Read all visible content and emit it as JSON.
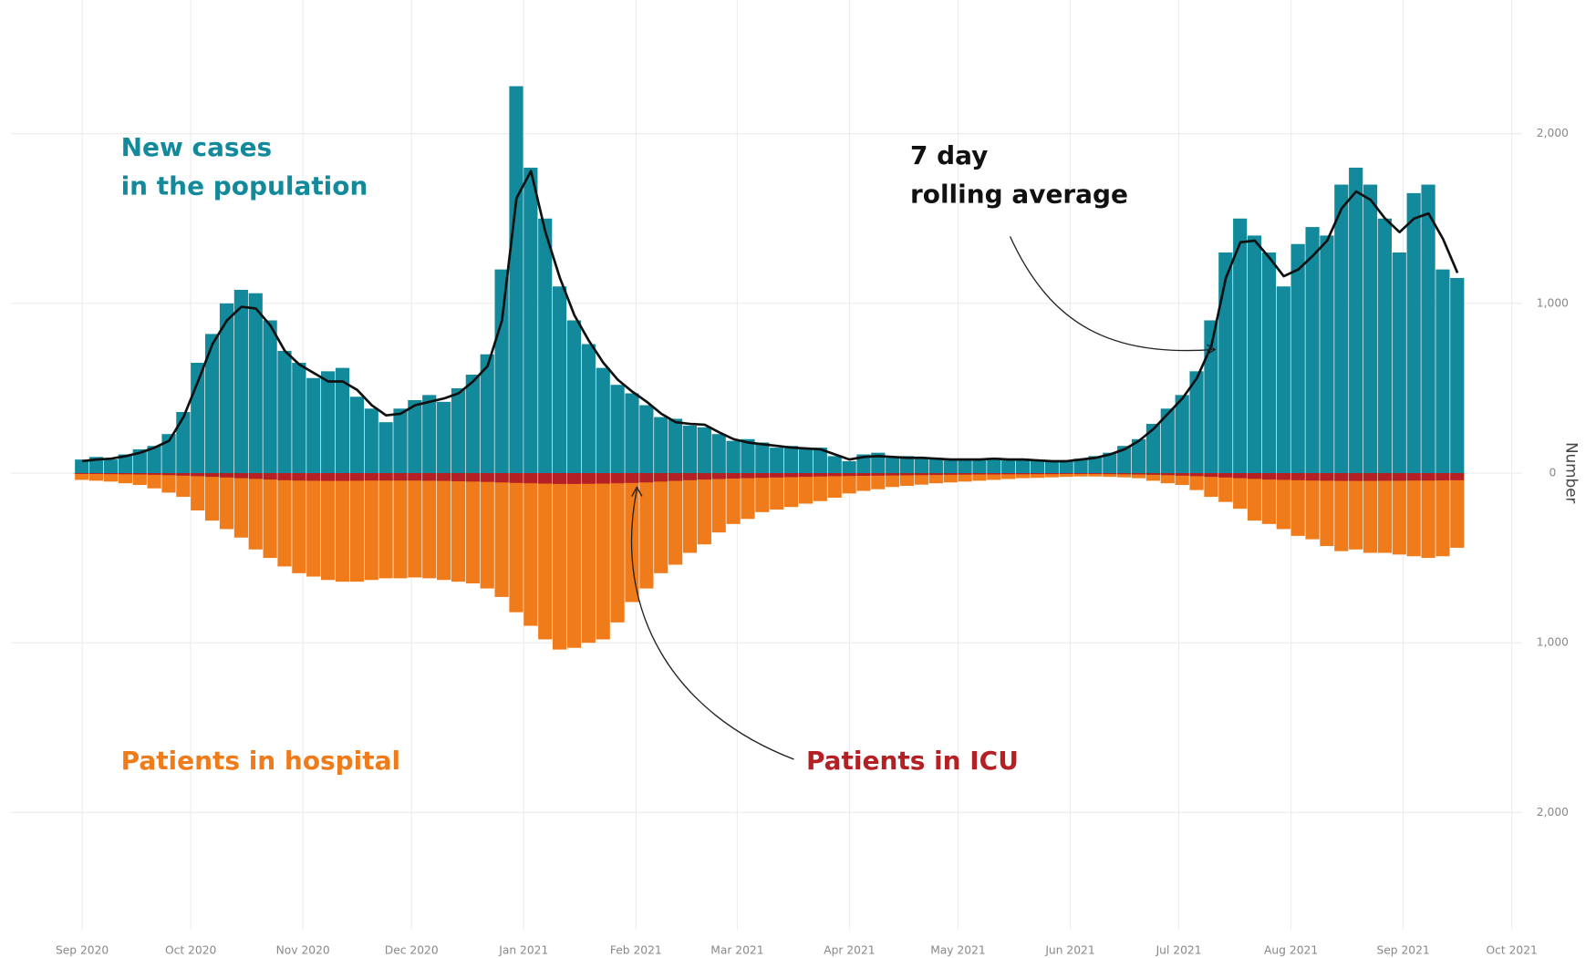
{
  "chart_data": {
    "type": "bar",
    "y_label": "Number",
    "xlim": [
      -6,
      395
    ],
    "xticks": [
      {
        "value": 0,
        "label": "Sep 2020"
      },
      {
        "value": 30,
        "label": "Oct 2020"
      },
      {
        "value": 61,
        "label": "Nov 2020"
      },
      {
        "value": 91,
        "label": "Dec 2020"
      },
      {
        "value": 122,
        "label": "Jan 2021"
      },
      {
        "value": 153,
        "label": "Feb 2021"
      },
      {
        "value": 181,
        "label": "Mar 2021"
      },
      {
        "value": 212,
        "label": "Apr 2021"
      },
      {
        "value": 242,
        "label": "May 2021"
      },
      {
        "value": 273,
        "label": "Jun 2021"
      },
      {
        "value": 303,
        "label": "Jul 2021"
      },
      {
        "value": 334,
        "label": "Aug 2021"
      },
      {
        "value": 365,
        "label": "Sep 2021"
      },
      {
        "value": 395,
        "label": "Oct 2021"
      }
    ],
    "ylim": [
      -2700,
      2800
    ],
    "yticks": [
      {
        "value": 2000,
        "label": "2,000"
      },
      {
        "value": 1000,
        "label": "1,000"
      },
      0,
      {
        "value": -1000,
        "label": "1,000"
      },
      {
        "value": -2000,
        "label": "2,000"
      }
    ],
    "grid": true,
    "x": [
      0,
      4,
      8,
      12,
      16,
      20,
      24,
      28,
      32,
      36,
      40,
      44,
      48,
      52,
      56,
      60,
      64,
      68,
      72,
      76,
      80,
      84,
      88,
      92,
      96,
      100,
      104,
      108,
      112,
      116,
      120,
      124,
      128,
      132,
      136,
      140,
      144,
      148,
      152,
      156,
      160,
      164,
      168,
      172,
      176,
      180,
      184,
      188,
      192,
      196,
      200,
      204,
      208,
      212,
      216,
      220,
      224,
      228,
      232,
      236,
      240,
      244,
      248,
      252,
      256,
      260,
      264,
      268,
      272,
      276,
      280,
      284,
      288,
      292,
      296,
      300,
      304,
      308,
      312,
      316,
      320,
      324,
      328,
      332,
      336,
      340,
      344,
      348,
      352,
      356,
      360,
      364,
      368,
      372,
      376,
      380
    ],
    "series": [
      {
        "name": "New cases\nin the population",
        "type": "bar",
        "direction": "up",
        "color": "#138a9c",
        "values": [
          80,
          95,
          80,
          110,
          140,
          160,
          230,
          360,
          650,
          820,
          1000,
          1080,
          1060,
          900,
          720,
          650,
          560,
          600,
          620,
          450,
          380,
          300,
          380,
          430,
          460,
          420,
          500,
          580,
          700,
          1200,
          2280,
          1800,
          1500,
          1100,
          900,
          760,
          620,
          520,
          470,
          400,
          330,
          320,
          280,
          270,
          230,
          190,
          200,
          180,
          150,
          160,
          140,
          150,
          100,
          70,
          110,
          120,
          90,
          100,
          85,
          90,
          75,
          85,
          80,
          90,
          75,
          85,
          70,
          65,
          75,
          85,
          100,
          120,
          160,
          200,
          290,
          380,
          460,
          600,
          900,
          1300,
          1500,
          1400,
          1300,
          1100,
          1350,
          1450,
          1400,
          1700,
          1800,
          1700,
          1500,
          1300,
          1650,
          1700,
          1200,
          1150
        ]
      },
      {
        "name": "7 day\nrolling average",
        "type": "line",
        "color": "#111111",
        "values": [
          70,
          80,
          85,
          100,
          120,
          150,
          190,
          330,
          540,
          760,
          900,
          980,
          970,
          870,
          720,
          640,
          590,
          540,
          540,
          490,
          400,
          340,
          350,
          400,
          420,
          440,
          470,
          540,
          630,
          900,
          1620,
          1780,
          1420,
          1150,
          930,
          780,
          650,
          550,
          480,
          420,
          350,
          300,
          290,
          285,
          240,
          200,
          180,
          170,
          160,
          150,
          145,
          140,
          110,
          80,
          95,
          100,
          95,
          90,
          90,
          85,
          80,
          80,
          80,
          85,
          80,
          80,
          75,
          70,
          70,
          80,
          90,
          110,
          140,
          190,
          260,
          350,
          440,
          560,
          750,
          1150,
          1360,
          1370,
          1270,
          1160,
          1200,
          1280,
          1370,
          1560,
          1660,
          1610,
          1500,
          1420,
          1500,
          1530,
          1380,
          1180
        ]
      },
      {
        "name": "Patients in hospital",
        "type": "bar",
        "direction": "down",
        "color": "#f07b1a",
        "values": [
          40,
          45,
          50,
          60,
          70,
          90,
          115,
          140,
          220,
          280,
          330,
          380,
          450,
          500,
          550,
          590,
          610,
          630,
          640,
          640,
          630,
          620,
          620,
          615,
          620,
          630,
          640,
          650,
          680,
          730,
          820,
          900,
          980,
          1040,
          1030,
          1000,
          980,
          880,
          760,
          680,
          590,
          540,
          470,
          420,
          350,
          300,
          270,
          230,
          215,
          200,
          180,
          165,
          145,
          120,
          105,
          95,
          82,
          75,
          68,
          60,
          55,
          50,
          45,
          40,
          35,
          30,
          28,
          25,
          22,
          20,
          20,
          22,
          25,
          30,
          45,
          60,
          70,
          100,
          140,
          170,
          210,
          280,
          300,
          330,
          370,
          390,
          430,
          460,
          450,
          470,
          470,
          480,
          490,
          500,
          490,
          440
        ]
      },
      {
        "name": "Patients in ICU",
        "type": "bar",
        "direction": "down",
        "color": "#b52025",
        "values": [
          5,
          5,
          6,
          7,
          8,
          10,
          12,
          15,
          18,
          22,
          26,
          30,
          34,
          38,
          42,
          44,
          45,
          46,
          46,
          45,
          44,
          44,
          44,
          44,
          45,
          46,
          48,
          50,
          52,
          55,
          58,
          60,
          62,
          64,
          64,
          63,
          62,
          60,
          58,
          55,
          50,
          46,
          42,
          38,
          35,
          32,
          30,
          28,
          26,
          24,
          22,
          20,
          18,
          17,
          16,
          15,
          14,
          13,
          12,
          11,
          10,
          9,
          8,
          8,
          7,
          7,
          6,
          6,
          5,
          5,
          5,
          6,
          7,
          8,
          10,
          12,
          15,
          18,
          22,
          26,
          30,
          34,
          38,
          40,
          42,
          44,
          45,
          46,
          46,
          46,
          45,
          45,
          44,
          44,
          43,
          42
        ]
      }
    ]
  }
}
